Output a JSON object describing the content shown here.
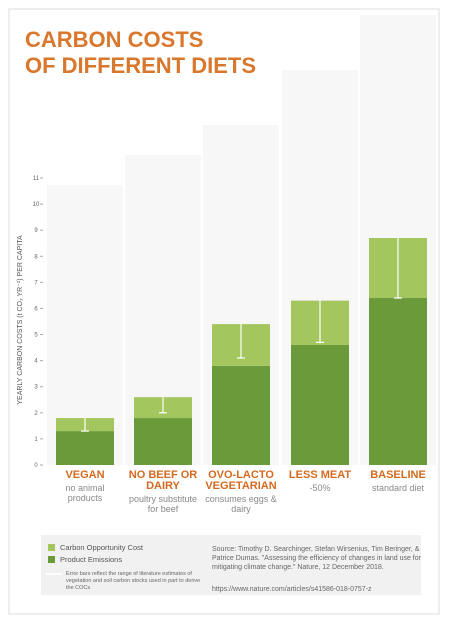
{
  "chart_data": {
    "type": "stacked_bar",
    "title": "CARBON COSTS",
    "title_line2": "OF DIFFERENT DIETS",
    "y_label": "YEARLY CARBON COSTS (t CO₂ YR⁻¹) PER CAPITA",
    "categories": [
      "VEGAN",
      "NO BEEF OR DAIRY",
      "OVO-LACTO VEGETARIAN",
      "LESS MEAT",
      "BASELINE"
    ],
    "category_notes": [
      "no animal products",
      "poultry substitute for beef",
      "consumes eggs & dairy",
      "-50%",
      "standard diet"
    ],
    "series": [
      {
        "name": "Product Emissions",
        "color": "#6b9a3b",
        "values": [
          1.3,
          1.8,
          3.8,
          4.6,
          6.4
        ]
      },
      {
        "name": "Carbon Opportunity Cost",
        "color": "#a4c65f",
        "values": [
          0.5,
          0.8,
          1.6,
          1.7,
          2.3
        ],
        "errors": [
          0.5,
          0.6,
          1.3,
          1.6,
          2.3
        ]
      }
    ],
    "ylim": [
      0,
      11
    ],
    "yticks": [
      0,
      1,
      2,
      3,
      4,
      5,
      6,
      7,
      8,
      9,
      10,
      11
    ],
    "error_note": "Error bars reflect the range of literature estimates of vegetation and soil carbon stocks used in part to derive the COCs",
    "source": "Source: Timothy D. Searchinger, Stefan Wirsenius, Tim Beringer, & Patrice Dumas. \"Assessing the efficiency of changes in land use for mitigating climate change.\" Nature, 12 December 2018.",
    "url": "https://www.nature.com/articles/s41586-018-0757-z"
  }
}
